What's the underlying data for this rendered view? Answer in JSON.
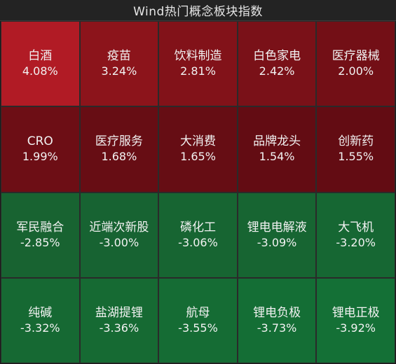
{
  "header": {
    "title": "Wind热门概念板块指数"
  },
  "chart_data": {
    "type": "heatmap",
    "columns": 5,
    "rows": 4,
    "cells": [
      {
        "name": "白酒",
        "value": 4.08,
        "label": "4.08%",
        "color": "#b11b25"
      },
      {
        "name": "疫苗",
        "value": 3.24,
        "label": "3.24%",
        "color": "#8c141b"
      },
      {
        "name": "饮料制造",
        "value": 2.81,
        "label": "2.81%",
        "color": "#821219"
      },
      {
        "name": "白色家电",
        "value": 2.42,
        "label": "2.42%",
        "color": "#7a1118"
      },
      {
        "name": "医疗器械",
        "value": 2.0,
        "label": "2.00%",
        "color": "#730f16"
      },
      {
        "name": "CRO",
        "value": 1.99,
        "label": "1.99%",
        "color": "#6d0e15"
      },
      {
        "name": "医疗服务",
        "value": 1.68,
        "label": "1.68%",
        "color": "#670d14"
      },
      {
        "name": "大消费",
        "value": 1.65,
        "label": "1.65%",
        "color": "#660d14"
      },
      {
        "name": "品牌龙头",
        "value": 1.54,
        "label": "1.54%",
        "color": "#630c13"
      },
      {
        "name": "创新药",
        "value": 1.55,
        "label": "1.55%",
        "color": "#630c13"
      },
      {
        "name": "军民融合",
        "value": -2.85,
        "label": "-2.85%",
        "color": "#186331"
      },
      {
        "name": "近端次新股",
        "value": -3.0,
        "label": "-3.00%",
        "color": "#176332"
      },
      {
        "name": "磷化工",
        "value": -3.06,
        "label": "-3.06%",
        "color": "#176532"
      },
      {
        "name": "锂电电解液",
        "value": -3.09,
        "label": "-3.09%",
        "color": "#176532"
      },
      {
        "name": "大飞机",
        "value": -3.2,
        "label": "-3.20%",
        "color": "#166733"
      },
      {
        "name": "纯碱",
        "value": -3.32,
        "label": "-3.32%",
        "color": "#166933"
      },
      {
        "name": "盐湖提锂",
        "value": -3.36,
        "label": "-3.36%",
        "color": "#166a33"
      },
      {
        "name": "航母",
        "value": -3.55,
        "label": "-3.55%",
        "color": "#156c34"
      },
      {
        "name": "锂电负极",
        "value": -3.73,
        "label": "-3.73%",
        "color": "#146e35"
      },
      {
        "name": "锂电正极",
        "value": -3.92,
        "label": "-3.92%",
        "color": "#147036"
      }
    ]
  }
}
